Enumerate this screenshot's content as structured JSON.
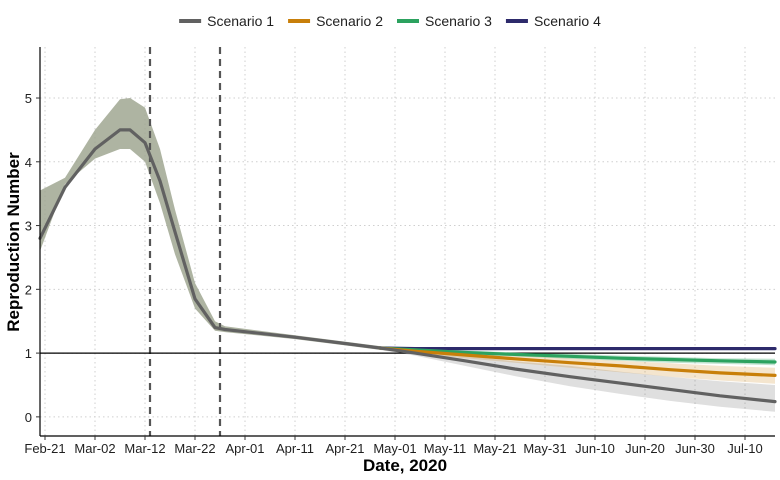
{
  "chart_data": {
    "type": "line",
    "title": "",
    "xlabel": "Date, 2020",
    "ylabel": "Reproduction Number",
    "x_range": [
      "2020-02-20",
      "2020-07-16"
    ],
    "ylim": [
      -0.3,
      5.8
    ],
    "grid": true,
    "legend_position": "top",
    "reference_line_y": 1,
    "vertical_markers": [
      "2020-03-13",
      "2020-03-27"
    ],
    "x_ticks": [
      {
        "date": "2020-02-21",
        "label": "Feb-21"
      },
      {
        "date": "2020-03-02",
        "label": "Mar-02"
      },
      {
        "date": "2020-03-12",
        "label": "Mar-12"
      },
      {
        "date": "2020-03-22",
        "label": "Mar-22"
      },
      {
        "date": "2020-04-01",
        "label": "Apr-01"
      },
      {
        "date": "2020-04-11",
        "label": "Apr-11"
      },
      {
        "date": "2020-04-21",
        "label": "Apr-21"
      },
      {
        "date": "2020-05-01",
        "label": "May-01"
      },
      {
        "date": "2020-05-11",
        "label": "May-11"
      },
      {
        "date": "2020-05-21",
        "label": "May-21"
      },
      {
        "date": "2020-05-31",
        "label": "May-31"
      },
      {
        "date": "2020-06-10",
        "label": "Jun-10"
      },
      {
        "date": "2020-06-20",
        "label": "Jun-20"
      },
      {
        "date": "2020-06-30",
        "label": "Jun-30"
      },
      {
        "date": "2020-07-10",
        "label": "Jul-10"
      }
    ],
    "y_ticks": [
      0,
      1,
      2,
      3,
      4,
      5
    ],
    "common_curve": {
      "date": [
        "2020-02-20",
        "2020-02-25",
        "2020-03-02",
        "2020-03-07",
        "2020-03-09",
        "2020-03-12",
        "2020-03-15",
        "2020-03-18",
        "2020-03-22",
        "2020-03-26",
        "2020-03-28",
        "2020-04-11",
        "2020-04-21",
        "2020-04-28"
      ],
      "y": [
        2.8,
        3.6,
        4.2,
        4.5,
        4.5,
        4.3,
        3.7,
        2.9,
        1.85,
        1.4,
        1.37,
        1.25,
        1.15,
        1.08
      ],
      "ribbon_lower": [
        2.6,
        3.65,
        4.05,
        4.2,
        4.2,
        4.0,
        3.35,
        2.55,
        1.7,
        1.35,
        1.33,
        1.22,
        1.12,
        1.05
      ],
      "ribbon_upper": [
        3.55,
        3.75,
        4.5,
        4.98,
        5.0,
        4.85,
        4.2,
        3.25,
        2.1,
        1.5,
        1.42,
        1.28,
        1.18,
        1.11
      ]
    },
    "series": [
      {
        "name": "Scenario 1",
        "color": "#616161",
        "date": [
          "2020-04-28",
          "2020-05-05",
          "2020-05-15",
          "2020-05-25",
          "2020-06-05",
          "2020-06-15",
          "2020-06-25",
          "2020-07-05",
          "2020-07-16"
        ],
        "y": [
          1.08,
          1.0,
          0.88,
          0.75,
          0.63,
          0.53,
          0.43,
          0.33,
          0.24
        ],
        "ribbon_lower": [
          1.05,
          0.96,
          0.8,
          0.64,
          0.48,
          0.36,
          0.25,
          0.16,
          0.08
        ],
        "ribbon_upper": [
          1.11,
          1.04,
          0.96,
          0.87,
          0.8,
          0.71,
          0.63,
          0.56,
          0.5
        ]
      },
      {
        "name": "Scenario 2",
        "color": "#c87f0a",
        "date": [
          "2020-04-28",
          "2020-05-05",
          "2020-05-15",
          "2020-05-25",
          "2020-06-05",
          "2020-06-15",
          "2020-06-25",
          "2020-07-05",
          "2020-07-16"
        ],
        "y": [
          1.08,
          1.03,
          0.97,
          0.91,
          0.85,
          0.8,
          0.74,
          0.69,
          0.65
        ],
        "ribbon_lower": [
          1.06,
          1.0,
          0.92,
          0.85,
          0.77,
          0.7,
          0.63,
          0.57,
          0.52
        ],
        "ribbon_upper": [
          1.1,
          1.06,
          1.01,
          0.97,
          0.92,
          0.88,
          0.84,
          0.8,
          0.77
        ]
      },
      {
        "name": "Scenario 3",
        "color": "#2ca25f",
        "date": [
          "2020-04-28",
          "2020-05-05",
          "2020-05-15",
          "2020-05-25",
          "2020-06-05",
          "2020-06-15",
          "2020-06-25",
          "2020-07-05",
          "2020-07-16"
        ],
        "y": [
          1.08,
          1.05,
          1.01,
          0.98,
          0.95,
          0.92,
          0.9,
          0.88,
          0.86
        ],
        "ribbon_lower": [
          1.07,
          1.03,
          0.98,
          0.95,
          0.91,
          0.88,
          0.85,
          0.83,
          0.81
        ],
        "ribbon_upper": [
          1.09,
          1.07,
          1.04,
          1.01,
          0.99,
          0.96,
          0.94,
          0.92,
          0.91
        ]
      },
      {
        "name": "Scenario 4",
        "color": "#2d2a6b",
        "date": [
          "2020-04-28",
          "2020-05-05",
          "2020-05-15",
          "2020-05-25",
          "2020-06-05",
          "2020-06-15",
          "2020-06-25",
          "2020-07-05",
          "2020-07-16"
        ],
        "y": [
          1.08,
          1.07,
          1.07,
          1.07,
          1.07,
          1.07,
          1.07,
          1.07,
          1.07
        ],
        "ribbon_lower": [
          1.07,
          1.05,
          1.05,
          1.05,
          1.05,
          1.05,
          1.05,
          1.05,
          1.05
        ],
        "ribbon_upper": [
          1.09,
          1.09,
          1.09,
          1.09,
          1.09,
          1.09,
          1.09,
          1.09,
          1.09
        ]
      }
    ]
  }
}
